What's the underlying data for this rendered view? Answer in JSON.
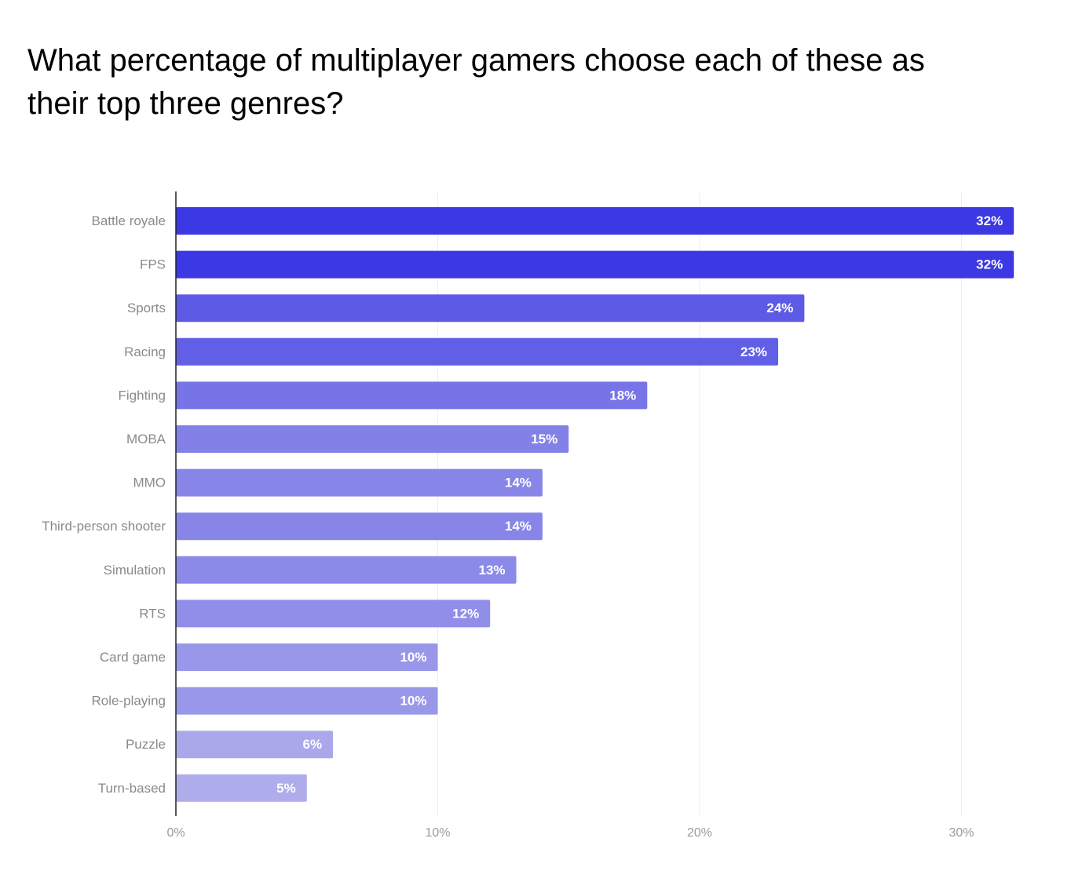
{
  "chart_data": {
    "type": "bar",
    "orientation": "horizontal",
    "title": "What percentage of multiplayer gamers choose each of these as their top three genres?",
    "categories": [
      "Battle royale",
      "FPS",
      "Sports",
      "Racing",
      "Fighting",
      "MOBA",
      "MMO",
      "Third-person shooter",
      "Simulation",
      "RTS",
      "Card game",
      "Role-playing",
      "Puzzle",
      "Turn-based"
    ],
    "values": [
      32,
      32,
      24,
      23,
      18,
      15,
      14,
      14,
      13,
      12,
      10,
      10,
      6,
      5
    ],
    "value_labels": [
      "32%",
      "32%",
      "24%",
      "23%",
      "18%",
      "15%",
      "14%",
      "14%",
      "13%",
      "12%",
      "10%",
      "10%",
      "6%",
      "5%"
    ],
    "xlabel": "",
    "ylabel": "",
    "xlim": [
      0,
      34.5
    ],
    "x_ticks": [
      0,
      10,
      20,
      30
    ],
    "x_tick_labels": [
      "0%",
      "10%",
      "20%",
      "30%"
    ],
    "grid": "vertical",
    "legend": "none",
    "color_scale": {
      "high": "#3b38e4",
      "low": "#aeacea"
    }
  }
}
